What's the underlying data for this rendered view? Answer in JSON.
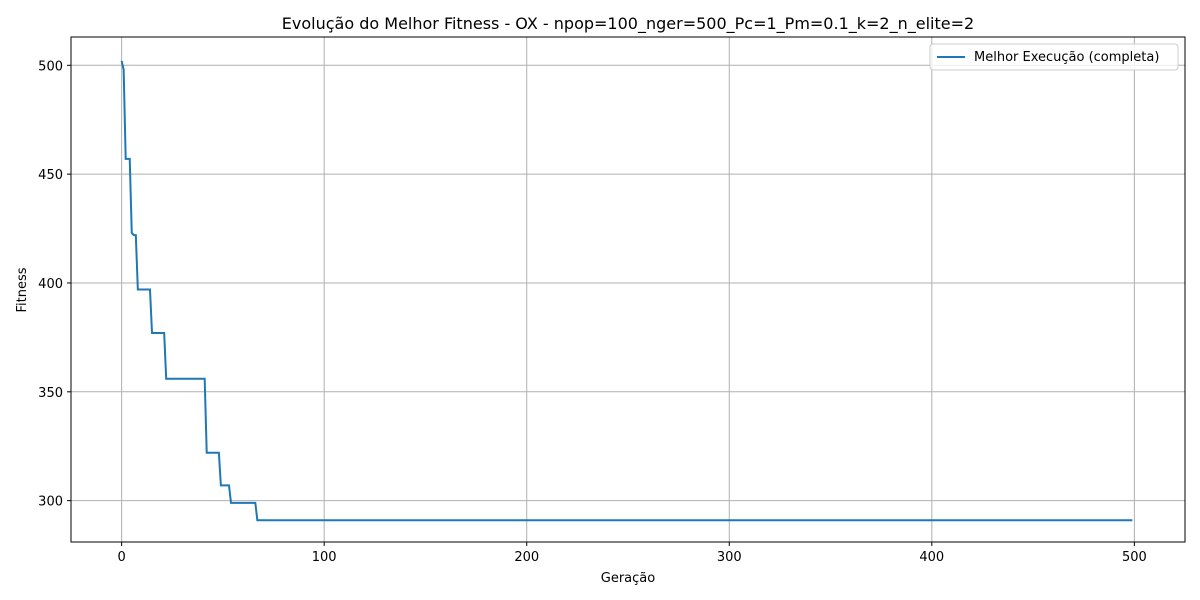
{
  "chart_data": {
    "type": "line",
    "title": "Evolução do Melhor Fitness - OX - npop=100_nger=500_Pc=1_Pm=0.1_k=2_n_elite=2",
    "xlabel": "Geração",
    "ylabel": "Fitness",
    "xlim": [
      -25,
      525
    ],
    "ylim": [
      281,
      513
    ],
    "xticks": [
      0,
      100,
      200,
      300,
      400,
      500
    ],
    "yticks": [
      300,
      350,
      400,
      450,
      500
    ],
    "grid": true,
    "legend_position": "top-right",
    "series": [
      {
        "name": "Melhor Execução (completa)",
        "color": "#1f77b4",
        "step": true,
        "points": [
          [
            0,
            502
          ],
          [
            1,
            498
          ],
          [
            2,
            457
          ],
          [
            4,
            457
          ],
          [
            5,
            423
          ],
          [
            6,
            422
          ],
          [
            7,
            422
          ],
          [
            8,
            397
          ],
          [
            14,
            397
          ],
          [
            15,
            377
          ],
          [
            21,
            377
          ],
          [
            22,
            356
          ],
          [
            41,
            356
          ],
          [
            42,
            322
          ],
          [
            48,
            322
          ],
          [
            49,
            307
          ],
          [
            53,
            307
          ],
          [
            54,
            299
          ],
          [
            66,
            299
          ],
          [
            67,
            291
          ],
          [
            499,
            291
          ]
        ]
      }
    ]
  }
}
